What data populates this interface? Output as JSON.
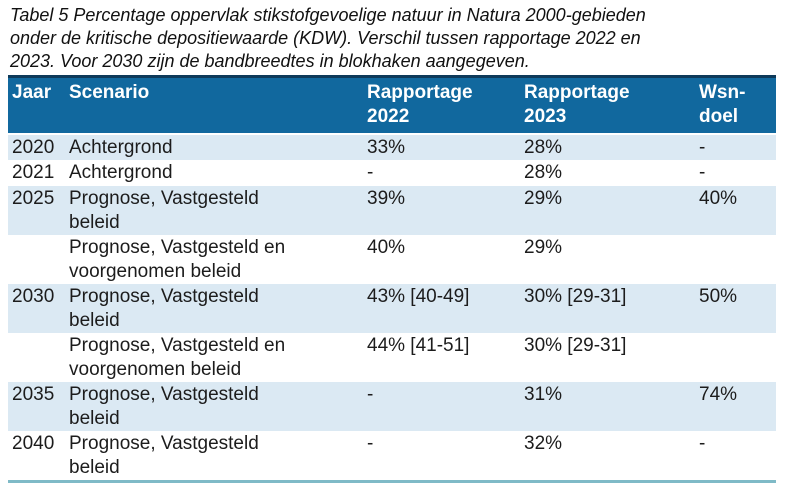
{
  "caption_lines": [
    "Tabel 5 Percentage oppervlak stikstofgevoelige natuur in Natura 2000-gebieden",
    "onder de kritische depositiewaarde (KDW). Verschil tussen rapportage 2022 en",
    "2023. Voor 2030 zijn de bandbreedtes in blokhaken aangegeven."
  ],
  "table": {
    "headers": [
      {
        "lines": [
          "Jaar"
        ]
      },
      {
        "lines": [
          "Scenario"
        ]
      },
      {
        "lines": [
          "Rapportage",
          "2022"
        ]
      },
      {
        "lines": [
          "Rapportage",
          "2023"
        ]
      },
      {
        "lines": [
          "Wsn-",
          "doel"
        ]
      }
    ],
    "rows": [
      {
        "jaar": "2020",
        "scenario_lines": [
          "Achtergrond"
        ],
        "rapportage_2022": "33%",
        "rapportage_2023": "28%",
        "wsn_doel": "-"
      },
      {
        "jaar": "2021",
        "scenario_lines": [
          "Achtergrond"
        ],
        "rapportage_2022": "-",
        "rapportage_2023": "28%",
        "wsn_doel": "-"
      },
      {
        "jaar": "2025",
        "scenario_lines": [
          "Prognose, Vastgesteld",
          "beleid"
        ],
        "rapportage_2022": "39%",
        "rapportage_2023": "29%",
        "wsn_doel": "40%"
      },
      {
        "jaar": "",
        "scenario_lines": [
          "Prognose, Vastgesteld en",
          "voorgenomen beleid"
        ],
        "rapportage_2022": "40%",
        "rapportage_2023": "29%",
        "wsn_doel": ""
      },
      {
        "jaar": "2030",
        "scenario_lines": [
          "Prognose, Vastgesteld",
          "beleid"
        ],
        "rapportage_2022": "43% [40-49]",
        "rapportage_2023": "30% [29-31]",
        "wsn_doel": "50%"
      },
      {
        "jaar": "",
        "scenario_lines": [
          "Prognose, Vastgesteld en",
          "voorgenomen beleid"
        ],
        "rapportage_2022": "44% [41-51]",
        "rapportage_2023": "30% [29-31]",
        "wsn_doel": ""
      },
      {
        "jaar": "2035",
        "scenario_lines": [
          "Prognose, Vastgesteld",
          "beleid"
        ],
        "rapportage_2022": "-",
        "rapportage_2023": "31%",
        "wsn_doel": "74%"
      },
      {
        "jaar": "2040",
        "scenario_lines": [
          "Prognose, Vastgesteld",
          "beleid"
        ],
        "rapportage_2022": "-",
        "rapportage_2023": "32%",
        "wsn_doel": "-"
      }
    ]
  },
  "colors": {
    "header_bg": "#11689e",
    "header_top_border": "#0e3a5a",
    "row_shaded": "#dbe9f3",
    "bottom_rule": "#7fbac7",
    "text": "#1c1c1c"
  }
}
